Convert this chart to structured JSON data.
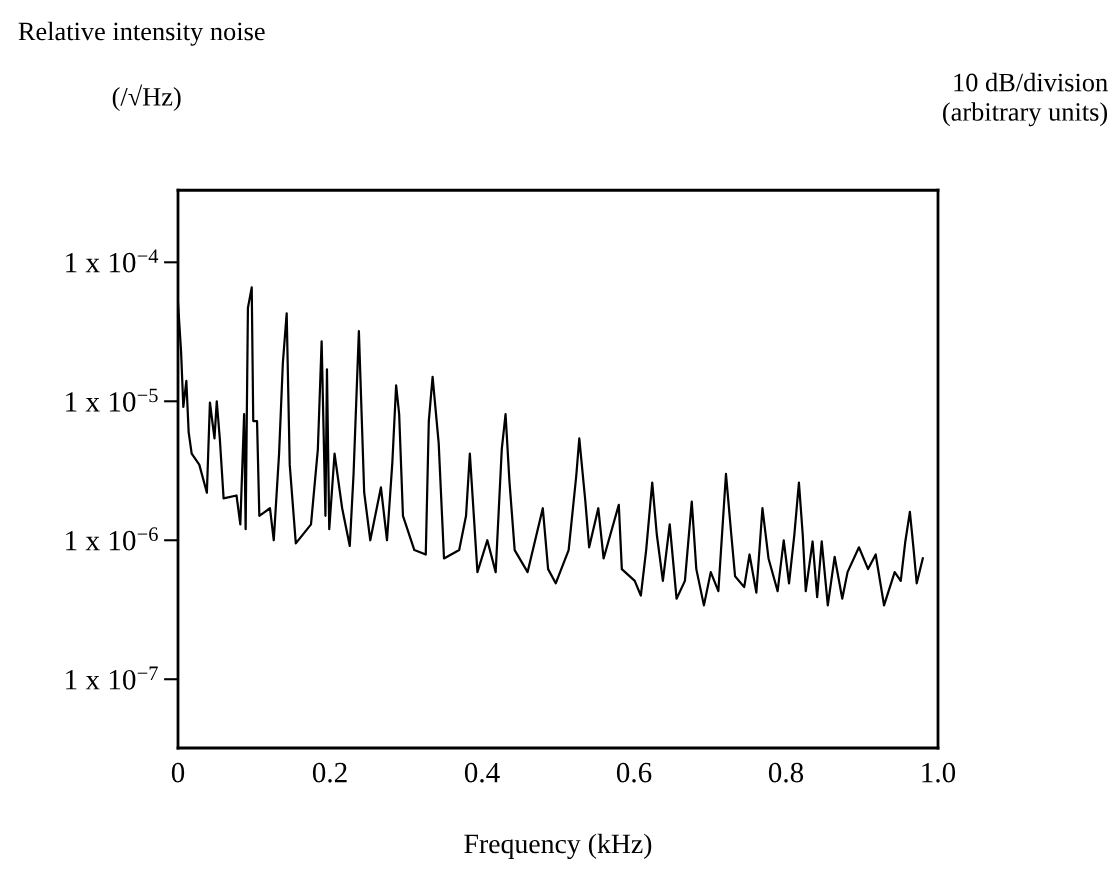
{
  "chart_data": {
    "type": "line",
    "title": "Relative intensity noise",
    "ylabel": "(/√Hz)",
    "y2label": "10 dB/division\n(arbitrary units)",
    "xlabel": "Frequency (kHz)",
    "xlim": [
      0,
      1.0
    ],
    "xticks": [
      0,
      0.2,
      0.4,
      0.6,
      0.8,
      {
        "value": 1.0,
        "label": "1.0"
      }
    ],
    "log": "y",
    "ylim": [
      3.2e-08,
      0.00033
    ],
    "yticks": [
      {
        "value": 1e-07,
        "label": "1 x 10$^{−7}$"
      },
      {
        "value": 1e-06,
        "label": "1 x 10$^{−6}$"
      },
      {
        "value": 1e-05,
        "label": "1 x 10$^{−5}$"
      },
      {
        "value": 0.0001,
        "label": "1 x 10$^{−4}$"
      }
    ],
    "grid": false,
    "legend": false,
    "marker": "none",
    "line_style": "solid",
    "series": [
      {
        "color": "#000000",
        "x": [
          0,
          0.004,
          0.007,
          0.011,
          0.014,
          0.018,
          0.028,
          0.038,
          0.042,
          0.048,
          0.051,
          0.055,
          0.06,
          0.077,
          0.082,
          0.087,
          0.089,
          0.092,
          0.097,
          0.099,
          0.104,
          0.107,
          0.121,
          0.126,
          0.133,
          0.138,
          0.143,
          0.147,
          0.155,
          0.175,
          0.184,
          0.189,
          0.194,
          0.196,
          0.199,
          0.206,
          0.216,
          0.226,
          0.231,
          0.238,
          0.245,
          0.253,
          0.267,
          0.275,
          0.282,
          0.287,
          0.291,
          0.296,
          0.311,
          0.326,
          0.33,
          0.335,
          0.343,
          0.35,
          0.37,
          0.379,
          0.384,
          0.394,
          0.407,
          0.418,
          0.426,
          0.431,
          0.436,
          0.443,
          0.46,
          0.48,
          0.487,
          0.497,
          0.514,
          0.524,
          0.528,
          0.536,
          0.541,
          0.553,
          0.56,
          0.58,
          0.584,
          0.601,
          0.609,
          0.616,
          0.624,
          0.63,
          0.638,
          0.647,
          0.656,
          0.667,
          0.676,
          0.682,
          0.692,
          0.701,
          0.711,
          0.721,
          0.728,
          0.733,
          0.745,
          0.752,
          0.761,
          0.769,
          0.777,
          0.789,
          0.797,
          0.804,
          0.811,
          0.817,
          0.822,
          0.826,
          0.835,
          0.841,
          0.847,
          0.855,
          0.864,
          0.874,
          0.881,
          0.896,
          0.908,
          0.918,
          0.929,
          0.943,
          0.951,
          0.957,
          0.963,
          0.968,
          0.972,
          0.98
        ],
        "values": [
          5.1e-05,
          2.3e-05,
          9.1e-06,
          1.4e-05,
          6e-06,
          4.2e-06,
          3.5e-06,
          2.2e-06,
          9.8e-06,
          5.4e-06,
          1e-05,
          5.4e-06,
          2e-06,
          2.1e-06,
          1.3e-06,
          8.1e-06,
          1.2e-06,
          4.7e-05,
          6.6e-05,
          7.2e-06,
          7.2e-06,
          1.5e-06,
          1.7e-06,
          1e-06,
          4.2e-06,
          1.9e-05,
          4.3e-05,
          3.5e-06,
          9.5e-07,
          1.3e-06,
          4.5e-06,
          2.7e-05,
          1.5e-06,
          1.7e-05,
          1.2e-06,
          4.2e-06,
          1.7e-06,
          9.1e-07,
          3e-06,
          3.2e-05,
          2.2e-06,
          1e-06,
          2.4e-06,
          1e-06,
          3.6e-06,
          1.3e-05,
          8.1e-06,
          1.5e-06,
          8.5e-07,
          7.9e-07,
          7.2e-06,
          1.5e-05,
          5e-06,
          7.4e-07,
          8.5e-07,
          1.5e-06,
          4.2e-06,
          5.9e-07,
          1e-06,
          5.9e-07,
          4.5e-06,
          8.1e-06,
          2.7e-06,
          8.5e-07,
          5.9e-07,
          1.7e-06,
          6.2e-07,
          4.9e-07,
          8.5e-07,
          2.9e-06,
          5.4e-06,
          1.9e-06,
          8.9e-07,
          1.7e-06,
          7.4e-07,
          1.8e-06,
          6.2e-07,
          5.1e-07,
          4e-07,
          8.5e-07,
          2.6e-06,
          1.1e-06,
          5.1e-07,
          1.3e-06,
          3.8e-07,
          5.1e-07,
          1.9e-06,
          6.2e-07,
          3.4e-07,
          5.9e-07,
          4.3e-07,
          3e-06,
          1.1e-06,
          5.5e-07,
          4.6e-07,
          7.9e-07,
          4.2e-07,
          1.7e-06,
          7.4e-07,
          4.3e-07,
          1e-06,
          4.9e-07,
          1.1e-06,
          2.6e-06,
          1.1e-06,
          4.3e-07,
          9.8e-07,
          3.9e-07,
          9.8e-07,
          3.4e-07,
          7.6e-07,
          3.8e-07,
          5.9e-07,
          8.9e-07,
          6.2e-07,
          7.9e-07,
          3.4e-07,
          5.9e-07,
          5.1e-07,
          9.8e-07,
          1.6e-06,
          8.5e-07,
          4.9e-07,
          7.4e-07
        ]
      }
    ]
  }
}
